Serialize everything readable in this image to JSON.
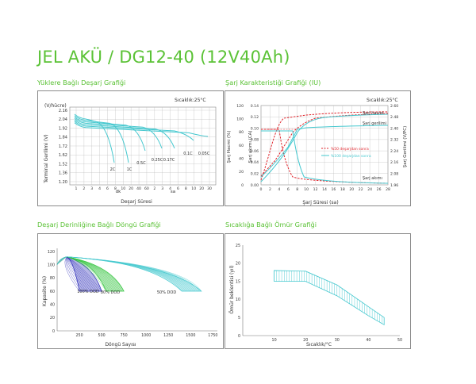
{
  "page": {
    "title": "JEL AKÜ / DG12-40 (12V40Ah)"
  },
  "chart_data": [
    {
      "id": "discharge",
      "type": "line",
      "title": "Yüklere Bağlı Deşarj Grafiği",
      "annotation": "Sıcaklık:25°C",
      "ylabel": "Terminal Gerilimi (V)",
      "yunit": "(V/hücre)",
      "xlabel": "Deşarj Süresi",
      "x_scale": "log",
      "y_ticks": [
        "2.16",
        "2.04",
        "1.92",
        "1.84",
        "1.72",
        "1.62",
        "1.52",
        "1.36",
        "1.20"
      ],
      "x_tick_labels": [
        "1",
        "2",
        "3",
        "4",
        "6",
        "8",
        "10",
        "20",
        "40",
        "60",
        "2",
        "3",
        "4",
        "6",
        "8",
        "10",
        "20",
        "30"
      ],
      "x_units": [
        "dk",
        "sa"
      ],
      "series": [
        {
          "name": "2C"
        },
        {
          "name": "1C"
        },
        {
          "name": "0.5C"
        },
        {
          "name": "0.25C"
        },
        {
          "name": "0.17C"
        },
        {
          "name": "0.1C"
        },
        {
          "name": "0.05C"
        }
      ],
      "curve_color": "#45c8cf"
    },
    {
      "id": "charge",
      "type": "line",
      "title": "Şarj Karakteristiği Grafiği (IU)",
      "annotation": "Sıcaklık:25°C",
      "ylabel_left1": "Şarj Hacmi (%)",
      "ylabel_left2": "Şarj akımı (CA)",
      "ylabel_right": "Şarj Gerilimi (V/PC)",
      "xlabel": "Şarj Süresi (sa)",
      "y1_ticks": [
        "120",
        "100",
        "80",
        "60",
        "40",
        "20",
        "0"
      ],
      "y2_ticks": [
        "0.14",
        "0.12",
        "0.10",
        "0.08",
        "0.06",
        "0.04",
        "0.02",
        "0.00"
      ],
      "y3_ticks": [
        "2.60",
        "2.48",
        "2.40",
        "2.32",
        "2.24",
        "2.16",
        "2.08",
        "1.96"
      ],
      "x_ticks": [
        "0",
        "2",
        "4",
        "6",
        "8",
        "10",
        "12",
        "14",
        "16",
        "18",
        "20",
        "22",
        "24",
        "26",
        "28"
      ],
      "labels": [
        "Şarj hacmi",
        "Şarj gerilimi",
        "Şarj akımı"
      ],
      "legend": [
        {
          "name": "%50 deşarjdan sonra",
          "color": "#e0262d",
          "style": "dashed"
        },
        {
          "name": "%100 deşarjdan sonra",
          "color": "#45c8cf",
          "style": "solid"
        }
      ]
    },
    {
      "id": "cycle",
      "type": "area",
      "title": "Deşarj Derinliğine Bağlı Döngü Grafiği",
      "ylabel": "Kapasite (%)",
      "xlabel": "Döngü Sayısı",
      "y_ticks": [
        "120",
        "100",
        "80",
        "60",
        "40",
        "20",
        "0"
      ],
      "x_ticks": [
        "250",
        "500",
        "750",
        "1000",
        "1250",
        "1500",
        "1750"
      ],
      "series": [
        {
          "name": "100% DOD",
          "end_cycles": [
            250,
            500
          ],
          "color": "#2a2ab8"
        },
        {
          "name": "80% DOD",
          "end_cycles": [
            550,
            750
          ],
          "color": "#32c43c"
        },
        {
          "name": "50% DOD",
          "end_cycles": [
            1400,
            1620
          ],
          "color": "#45c8cf"
        }
      ]
    },
    {
      "id": "life",
      "type": "area",
      "title": "Sıcaklığa Bağlı Ömür Grafiği",
      "ylabel": "Ömür beklentisi (yıl)",
      "xlabel": "Sıcaklık/°C",
      "y_ticks": [
        "25",
        "20",
        "15",
        "10",
        "5",
        "0"
      ],
      "x_ticks": [
        "10",
        "20",
        "30",
        "40",
        "50"
      ],
      "ylim": [
        0,
        25
      ],
      "xlim": [
        0,
        50
      ],
      "band_upper": [
        [
          10,
          18
        ],
        [
          20,
          17.8
        ],
        [
          30,
          14
        ],
        [
          40,
          8
        ],
        [
          45,
          5
        ]
      ],
      "band_lower": [
        [
          10,
          15
        ],
        [
          20,
          15
        ],
        [
          30,
          11
        ],
        [
          40,
          5.5
        ],
        [
          45,
          3
        ]
      ],
      "color": "#45c8cf"
    }
  ]
}
